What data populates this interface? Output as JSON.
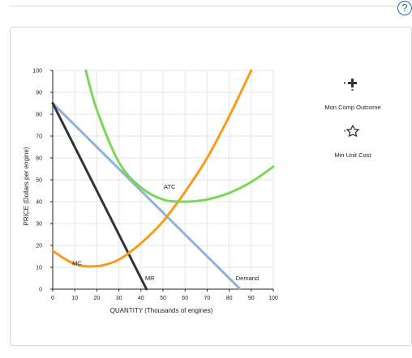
{
  "help": {
    "label": "?"
  },
  "palette": {
    "tool_mon_comp": "Mon Comp Outcome",
    "tool_min_unit_cost": "Min Unit Cost"
  },
  "chart_data": {
    "type": "line",
    "xlabel": "QUANTITY (Thousands of engines)",
    "ylabel": "PRICE (Dollars per engine)",
    "xlim": [
      0,
      100
    ],
    "ylim": [
      0,
      100
    ],
    "x_ticks": [
      0,
      10,
      20,
      30,
      40,
      50,
      60,
      70,
      80,
      90,
      100
    ],
    "y_ticks": [
      0,
      10,
      20,
      30,
      40,
      50,
      60,
      70,
      80,
      90,
      100
    ],
    "grid": true,
    "series": [
      {
        "name": "Demand",
        "color": "#8fb2d9",
        "x": [
          0,
          85
        ],
        "y": [
          85,
          0
        ]
      },
      {
        "name": "MR",
        "color": "#333333",
        "x": [
          0,
          42.5
        ],
        "y": [
          85,
          0
        ]
      },
      {
        "name": "MC",
        "color": "#f39c1e",
        "x": [
          0,
          10,
          20,
          30,
          40,
          50,
          60,
          70,
          80,
          90
        ],
        "y": [
          17.5,
          11.5,
          10.5,
          13.5,
          21,
          31,
          44.5,
          60,
          79,
          100
        ]
      },
      {
        "name": "ATC",
        "color": "#7bd856",
        "x": [
          15,
          20,
          30,
          40,
          50,
          60,
          70,
          80,
          90,
          100
        ],
        "y": [
          100,
          82,
          58,
          46.5,
          41,
          40,
          41,
          44,
          49,
          56
        ]
      }
    ],
    "annotations": [
      {
        "text": "Demand",
        "x": 83,
        "y": 4
      },
      {
        "text": "MR",
        "x": 44,
        "y": 4
      },
      {
        "text": "MC",
        "x": 11,
        "y": 11
      },
      {
        "text": "ATC",
        "x": 53,
        "y": 46
      }
    ]
  }
}
